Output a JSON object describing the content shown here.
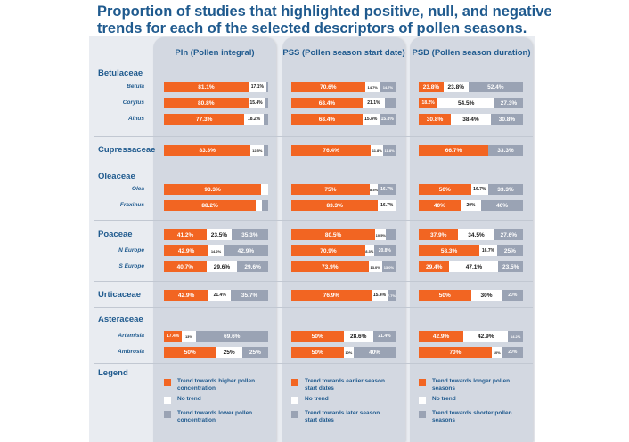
{
  "title": "Proportion of studies that highlighted positive, null, and negative trends for each of the selected descriptors of pollen seasons.",
  "colors": {
    "positive": "#f26522",
    "null": "#ffffff",
    "negative": "#9aa3b4",
    "accent": "#1f5a8e"
  },
  "chart_data": {
    "type": "bar",
    "stacked": true,
    "title": "Proportion of studies that highlighted positive, null, and negative trends for each of the selected descriptors of pollen seasons.",
    "columns": [
      {
        "code": "PIn",
        "label": "PIn (Pollen integral)"
      },
      {
        "code": "PSS",
        "label": "PSS (Pollen season start date)"
      },
      {
        "code": "PSD",
        "label": "PSD (Pollen season duration)"
      }
    ],
    "groups": [
      {
        "family": "Betulaceae",
        "rows": [
          {
            "name": "Betula",
            "values": [
              {
                "pos": 81.1,
                "null": 17.1,
                "neg": 1.8,
                "labels": [
                  "81.1%",
                  "17.1%",
                  ""
                ]
              },
              {
                "pos": 70.6,
                "null": 14.7,
                "neg": 14.7,
                "labels": [
                  "70.6%",
                  "14.7%",
                  "14.7%"
                ]
              },
              {
                "pos": 23.8,
                "null": 23.8,
                "neg": 52.4,
                "labels": [
                  "23.8%",
                  "23.8%",
                  "52.4%"
                ]
              }
            ]
          },
          {
            "name": "Corylus",
            "values": [
              {
                "pos": 80.8,
                "null": 15.4,
                "neg": 3.8,
                "labels": [
                  "80.8%",
                  "15.4%",
                  ""
                ]
              },
              {
                "pos": 68.4,
                "null": 21.1,
                "neg": 10.5,
                "labels": [
                  "68.4%",
                  "21.1%",
                  ""
                ]
              },
              {
                "pos": 18.2,
                "null": 54.5,
                "neg": 27.3,
                "labels": [
                  "18.2%",
                  "54.5%",
                  "27.3%"
                ]
              }
            ]
          },
          {
            "name": "Alnus",
            "values": [
              {
                "pos": 77.3,
                "null": 18.2,
                "neg": 4.5,
                "labels": [
                  "77.3%",
                  "18.2%",
                  ""
                ]
              },
              {
                "pos": 68.4,
                "null": 15.8,
                "neg": 15.8,
                "labels": [
                  "68.4%",
                  "15.8%",
                  "15.8%"
                ]
              },
              {
                "pos": 30.8,
                "null": 38.4,
                "neg": 30.8,
                "labels": [
                  "30.8%",
                  "38.4%",
                  "30.8%"
                ]
              }
            ]
          }
        ]
      },
      {
        "family": "Cupressaceae",
        "rows": [
          {
            "name": "",
            "values": [
              {
                "pos": 83.3,
                "null": 12.5,
                "neg": 4.2,
                "labels": [
                  "83.3%",
                  "12.5%",
                  ""
                ]
              },
              {
                "pos": 76.4,
                "null": 11.8,
                "neg": 11.8,
                "labels": [
                  "76.4%",
                  "11.8%",
                  "11.8%"
                ]
              },
              {
                "pos": 66.7,
                "null": 0,
                "neg": 33.3,
                "labels": [
                  "66.7%",
                  "",
                  "33.3%"
                ]
              }
            ]
          }
        ]
      },
      {
        "family": "Oleaceae",
        "rows": [
          {
            "name": "Olea",
            "values": [
              {
                "pos": 93.3,
                "null": 6.7,
                "neg": 0,
                "labels": [
                  "93.3%",
                  "",
                  ""
                ]
              },
              {
                "pos": 75,
                "null": 8.3,
                "neg": 16.7,
                "labels": [
                  "75%",
                  "8.3%",
                  "16.7%"
                ]
              },
              {
                "pos": 50,
                "null": 16.7,
                "neg": 33.3,
                "labels": [
                  "50%",
                  "16.7%",
                  "33.3%"
                ]
              }
            ]
          },
          {
            "name": "Fraxinus",
            "values": [
              {
                "pos": 88.2,
                "null": 5.9,
                "neg": 5.9,
                "labels": [
                  "88.2%",
                  "",
                  ""
                ]
              },
              {
                "pos": 83.3,
                "null": 16.7,
                "neg": 0,
                "labels": [
                  "83.3%",
                  "16.7%",
                  ""
                ]
              },
              {
                "pos": 40,
                "null": 20,
                "neg": 40,
                "labels": [
                  "40%",
                  "20%",
                  "40%"
                ]
              }
            ]
          }
        ]
      },
      {
        "family": "Poaceae",
        "rows": [
          {
            "name": "",
            "values": [
              {
                "pos": 41.2,
                "null": 23.5,
                "neg": 35.3,
                "labels": [
                  "41.2%",
                  "23.5%",
                  "35.3%"
                ]
              },
              {
                "pos": 80.5,
                "null": 10.5,
                "neg": 9,
                "labels": [
                  "80.5%",
                  "10.5%",
                  ""
                ]
              },
              {
                "pos": 37.9,
                "null": 34.5,
                "neg": 27.6,
                "labels": [
                  "37.9%",
                  "34.5%",
                  "27.6%"
                ]
              }
            ]
          },
          {
            "name": "N Europe",
            "values": [
              {
                "pos": 42.9,
                "null": 14.2,
                "neg": 42.9,
                "labels": [
                  "42.9%",
                  "14.2%",
                  "42.9%"
                ]
              },
              {
                "pos": 70.9,
                "null": 8.3,
                "neg": 20.8,
                "labels": [
                  "70.9%",
                  "8.3%",
                  "20.8%"
                ]
              },
              {
                "pos": 58.3,
                "null": 16.7,
                "neg": 25,
                "labels": [
                  "58.3%",
                  "16.7%",
                  "25%"
                ]
              }
            ]
          },
          {
            "name": "S Europe",
            "values": [
              {
                "pos": 40.7,
                "null": 29.6,
                "neg": 29.6,
                "labels": [
                  "40.7%",
                  "29.6%",
                  "29.6%"
                ]
              },
              {
                "pos": 73.9,
                "null": 13,
                "neg": 13,
                "labels": [
                  "73.9%",
                  "13.0%",
                  "13.0%"
                ]
              },
              {
                "pos": 29.4,
                "null": 47.1,
                "neg": 23.5,
                "labels": [
                  "29.4%",
                  "47.1%",
                  "23.5%"
                ]
              }
            ]
          }
        ]
      },
      {
        "family": "Urticaceae",
        "rows": [
          {
            "name": "",
            "values": [
              {
                "pos": 42.9,
                "null": 21.4,
                "neg": 35.7,
                "labels": [
                  "42.9%",
                  "21.4%",
                  "35.7%"
                ]
              },
              {
                "pos": 76.9,
                "null": 15.4,
                "neg": 7.7,
                "labels": [
                  "76.9%",
                  "15.4%",
                  "7.7%"
                ]
              },
              {
                "pos": 50,
                "null": 30,
                "neg": 20,
                "labels": [
                  "50%",
                  "30%",
                  "20%"
                ]
              }
            ]
          }
        ]
      },
      {
        "family": "Asteraceae",
        "rows": [
          {
            "name": "Artemisia",
            "values": [
              {
                "pos": 17.4,
                "null": 13,
                "neg": 69.6,
                "labels": [
                  "17.4%",
                  "13%",
                  "69.6%"
                ]
              },
              {
                "pos": 50,
                "null": 28.6,
                "neg": 21.4,
                "labels": [
                  "50%",
                  "28.6%",
                  "21.4%"
                ]
              },
              {
                "pos": 42.9,
                "null": 42.9,
                "neg": 14.2,
                "labels": [
                  "42.9%",
                  "42.9%",
                  "14.2%"
                ]
              }
            ]
          },
          {
            "name": "Ambrosia",
            "values": [
              {
                "pos": 50,
                "null": 25,
                "neg": 25,
                "labels": [
                  "50%",
                  "25%",
                  "25%"
                ]
              },
              {
                "pos": 50,
                "null": 10,
                "neg": 40,
                "labels": [
                  "50%",
                  "10%",
                  "40%"
                ]
              },
              {
                "pos": 70,
                "null": 10,
                "neg": 20,
                "labels": [
                  "70%",
                  "10%",
                  "20%"
                ]
              }
            ]
          }
        ]
      }
    ]
  },
  "legend": {
    "title": "Legend",
    "columns": [
      [
        "Trend towards higher pollen concentration",
        "No trend",
        "Trend towards lower pollen concentration"
      ],
      [
        "Trend towards earlier season start dates",
        "No trend",
        "Trend towards later season start dates"
      ],
      [
        "Trend towards longer pollen seasons",
        "No trend",
        "Trend towards shorter pollen seasons"
      ]
    ]
  }
}
